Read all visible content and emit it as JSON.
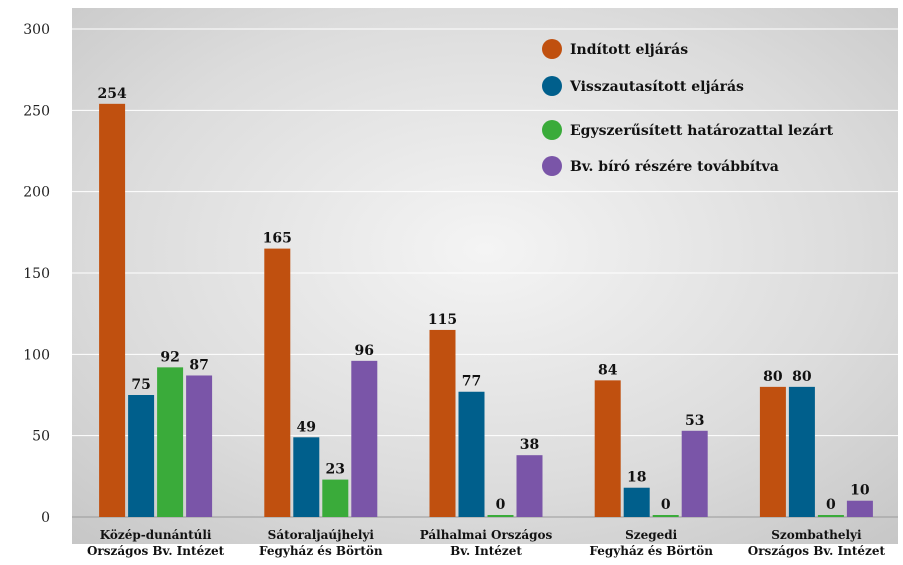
{
  "chart_data": {
    "type": "bar",
    "title": "",
    "xlabel": "",
    "ylabel": "",
    "ylim": [
      0,
      300
    ],
    "yticks": [
      0,
      50,
      100,
      150,
      200,
      250,
      300
    ],
    "grid": true,
    "legend_position": "top-right",
    "categories": [
      [
        "Közép-dunántúli",
        "Országos Bv. Intézet"
      ],
      [
        "Sátoraljaújhelyi",
        "Fegyház és Börtön"
      ],
      [
        "Pálhalmai Országos",
        "Bv. Intézet"
      ],
      [
        "Szegedi",
        "Fegyház és Börtön"
      ],
      [
        "Szombathelyi",
        "Országos Bv. Intézet"
      ]
    ],
    "series": [
      {
        "name": "Indított eljárás",
        "color": "#c0500f",
        "values": [
          254,
          165,
          115,
          84,
          80
        ]
      },
      {
        "name": "Visszautasított eljárás",
        "color": "#005f8c",
        "values": [
          75,
          49,
          77,
          18,
          80
        ]
      },
      {
        "name": "Egyszerűsített határozattal lezárt",
        "color": "#3aab3a",
        "values": [
          92,
          23,
          0,
          0,
          0
        ]
      },
      {
        "name": "Bv. bíró részére továbbítva",
        "color": "#7a55a8",
        "values": [
          87,
          96,
          38,
          53,
          10
        ]
      }
    ]
  }
}
